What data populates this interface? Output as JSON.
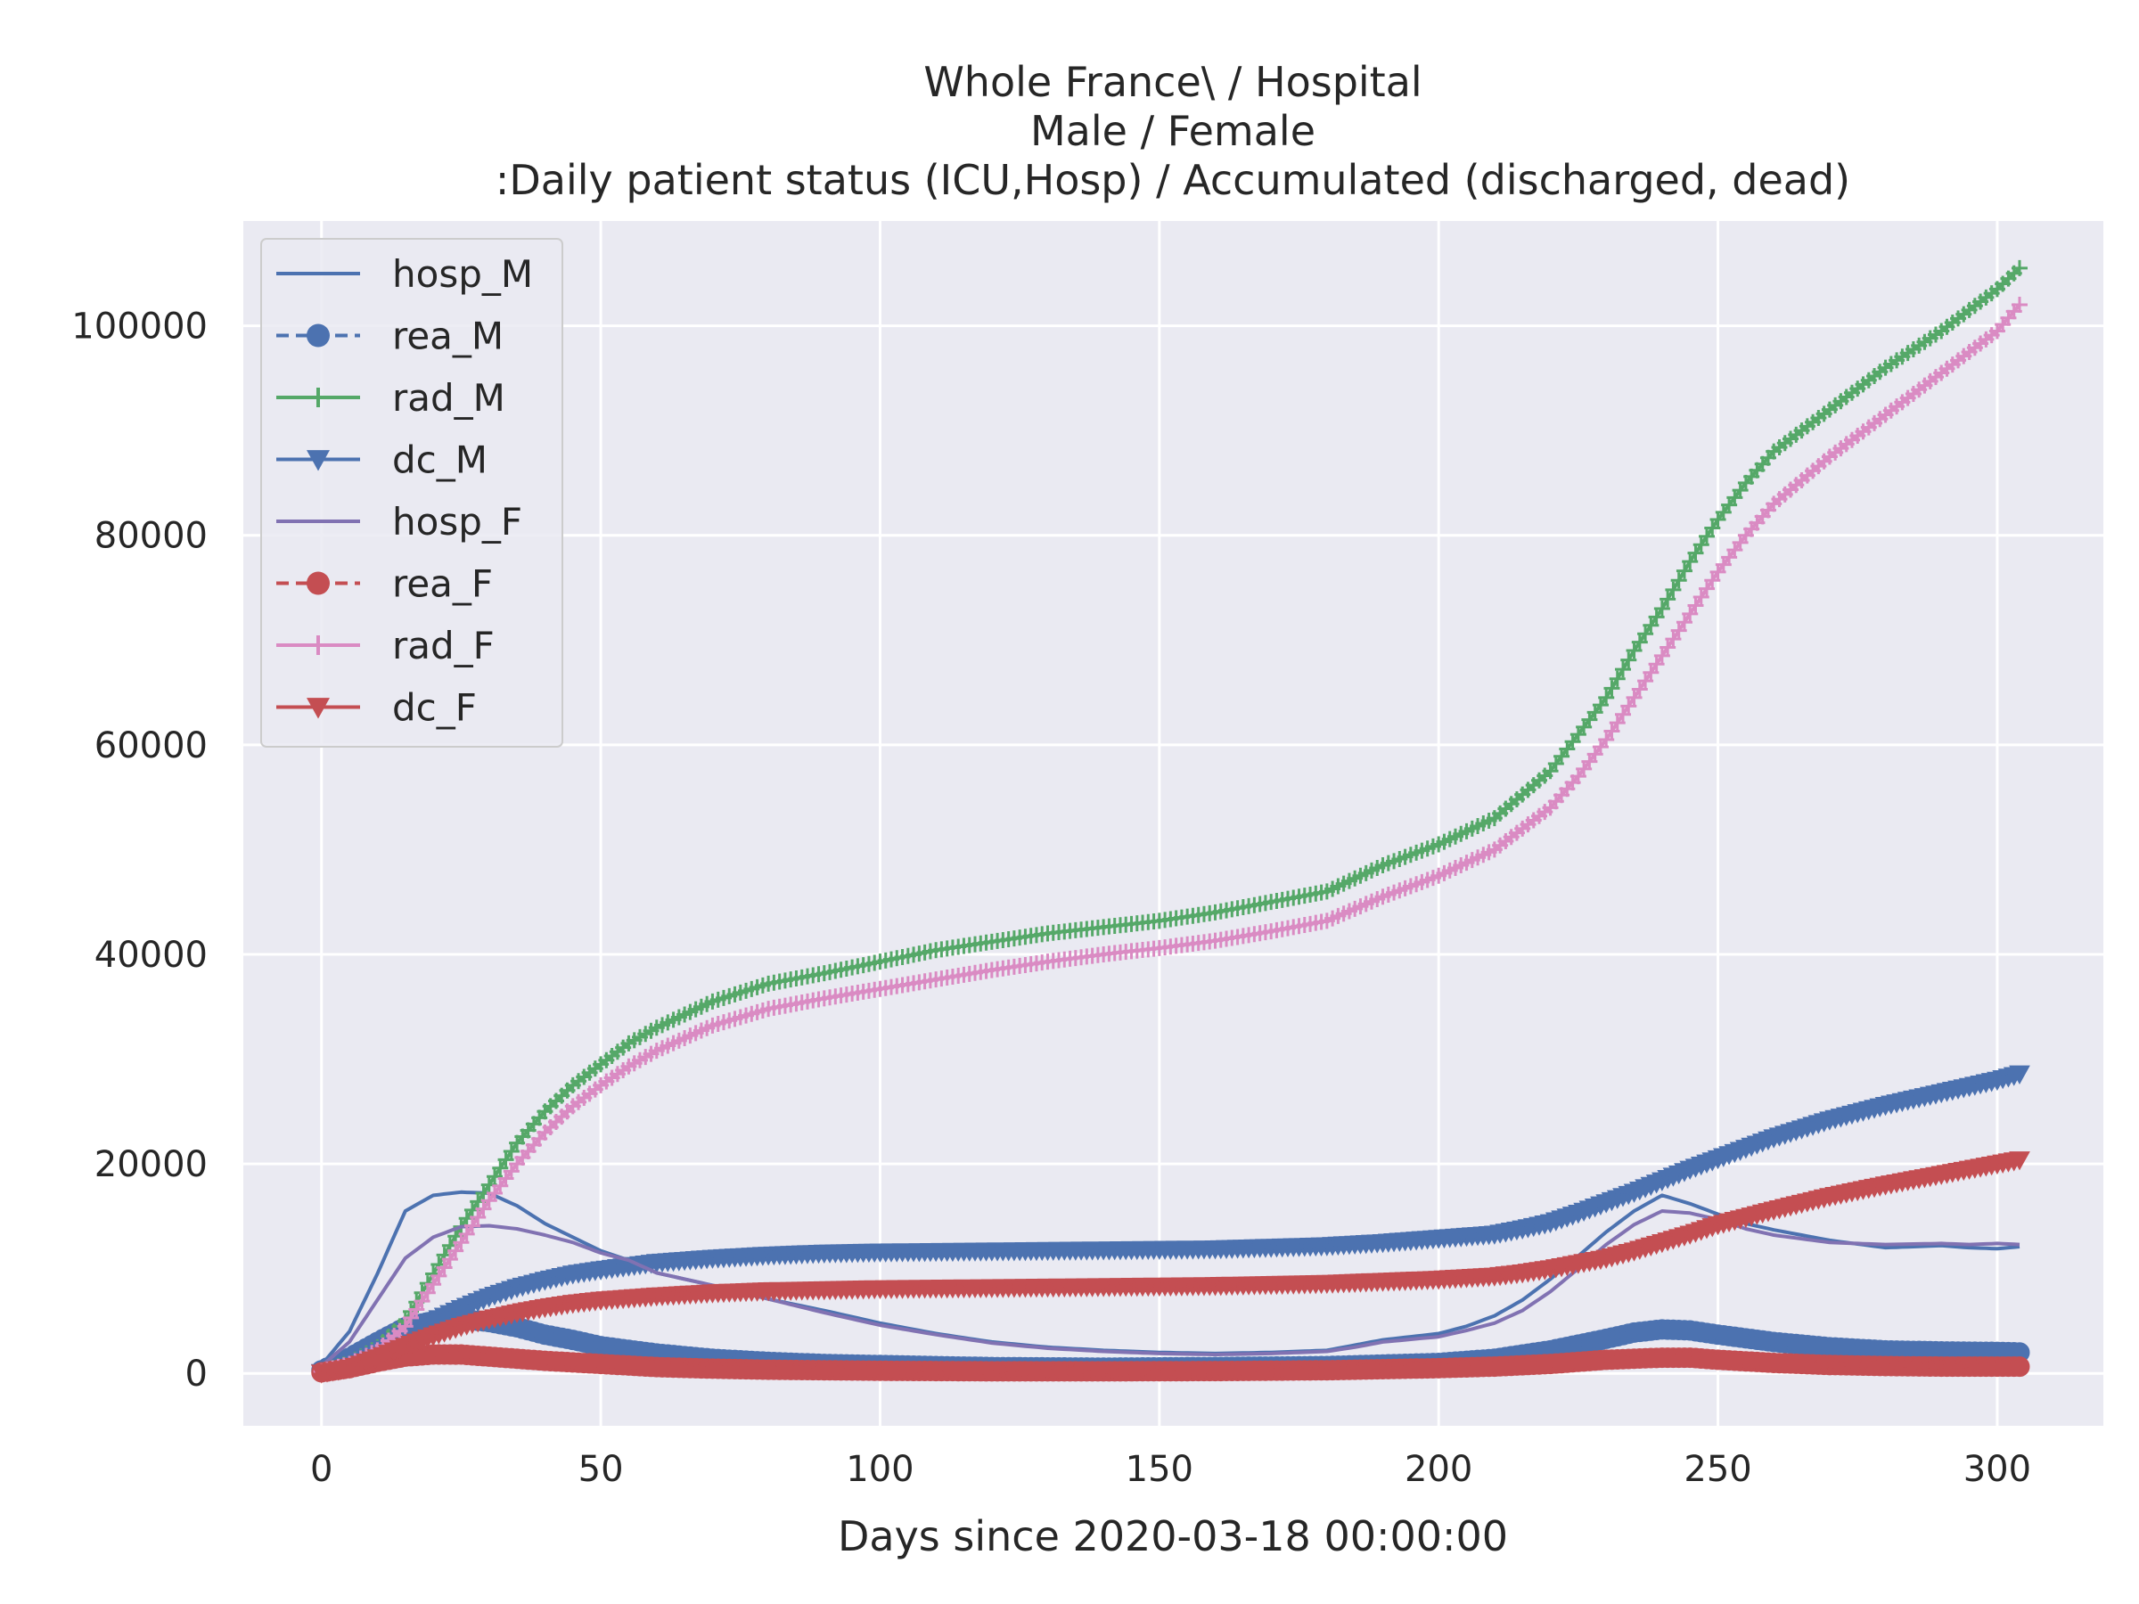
{
  "chart_data": {
    "type": "line",
    "title_lines": [
      "Whole France\\ / Hospital",
      "Male / Female",
      ":Daily patient status (ICU,Hosp) / Accumulated (discharged, dead)"
    ],
    "xlabel": "Days since 2020-03-18 00:00:00",
    "ylabel": "",
    "xlim": [
      -14,
      319
    ],
    "ylim": [
      -5000,
      110000
    ],
    "xticks": [
      0,
      50,
      100,
      150,
      200,
      250,
      300
    ],
    "yticks": [
      0,
      20000,
      40000,
      60000,
      80000,
      100000
    ],
    "grid": true,
    "background": "#eaeaf2",
    "legend_position": "upper-left",
    "series": [
      {
        "name": "hosp_M",
        "color": "#4c72b0",
        "line": "solid",
        "marker": "none",
        "x": [
          0,
          5,
          10,
          15,
          20,
          25,
          30,
          35,
          40,
          45,
          50,
          55,
          60,
          70,
          80,
          90,
          100,
          110,
          120,
          130,
          140,
          150,
          160,
          170,
          180,
          185,
          190,
          200,
          205,
          210,
          215,
          220,
          225,
          230,
          235,
          240,
          245,
          250,
          255,
          260,
          270,
          280,
          290,
          295,
          300,
          304
        ],
        "y": [
          800,
          4000,
          9500,
          15500,
          17000,
          17300,
          17200,
          16000,
          14300,
          13000,
          11700,
          10800,
          9600,
          8400,
          7100,
          6000,
          4800,
          3800,
          3000,
          2500,
          2200,
          2000,
          1900,
          2000,
          2200,
          2700,
          3200,
          3800,
          4500,
          5500,
          7000,
          9000,
          11200,
          13500,
          15500,
          17000,
          16200,
          15200,
          14300,
          13700,
          12700,
          12000,
          12200,
          12000,
          11900,
          12100
        ]
      },
      {
        "name": "rea_M",
        "color": "#4c72b0",
        "line": "dashed",
        "marker": "circle",
        "x": [
          0,
          5,
          10,
          15,
          20,
          25,
          30,
          35,
          40,
          45,
          50,
          60,
          70,
          80,
          90,
          100,
          120,
          140,
          160,
          180,
          200,
          210,
          220,
          230,
          235,
          240,
          245,
          250,
          260,
          270,
          280,
          290,
          300,
          304
        ],
        "y": [
          300,
          1500,
          3000,
          4400,
          5000,
          5200,
          4900,
          4400,
          3700,
          3200,
          2600,
          1900,
          1400,
          1100,
          900,
          800,
          600,
          550,
          600,
          700,
          1000,
          1400,
          2200,
          3300,
          3900,
          4200,
          4100,
          3700,
          3000,
          2500,
          2200,
          2100,
          2050,
          2000
        ]
      },
      {
        "name": "rad_M",
        "color": "#55a868",
        "line": "solid",
        "marker": "plus",
        "x": [
          0,
          5,
          10,
          15,
          20,
          25,
          30,
          35,
          40,
          45,
          50,
          55,
          60,
          70,
          80,
          90,
          100,
          110,
          120,
          130,
          140,
          150,
          160,
          170,
          180,
          190,
          200,
          210,
          220,
          225,
          230,
          235,
          240,
          245,
          250,
          255,
          260,
          270,
          280,
          290,
          300,
          304
        ],
        "y": [
          200,
          1000,
          2500,
          5000,
          9500,
          14000,
          18000,
          22000,
          25000,
          27500,
          29500,
          31500,
          33000,
          35500,
          37200,
          38200,
          39300,
          40400,
          41200,
          42000,
          42600,
          43200,
          44000,
          45000,
          46000,
          48500,
          50500,
          53000,
          57500,
          61000,
          64500,
          69000,
          73000,
          77500,
          81500,
          85000,
          88000,
          92000,
          96000,
          99500,
          103500,
          105500
        ]
      },
      {
        "name": "dc_M",
        "color": "#4c72b0",
        "line": "solid",
        "marker": "triangle-down",
        "x": [
          0,
          5,
          10,
          15,
          20,
          25,
          30,
          35,
          40,
          45,
          50,
          60,
          70,
          80,
          90,
          100,
          120,
          140,
          160,
          180,
          190,
          200,
          210,
          215,
          220,
          225,
          230,
          235,
          240,
          245,
          250,
          260,
          270,
          280,
          290,
          300,
          304
        ],
        "y": [
          100,
          700,
          2000,
          3600,
          5000,
          6200,
          7300,
          8200,
          8900,
          9500,
          9900,
          10600,
          11000,
          11300,
          11500,
          11600,
          11700,
          11800,
          11900,
          12200,
          12500,
          12900,
          13300,
          13800,
          14400,
          15300,
          16300,
          17300,
          18400,
          19500,
          20500,
          22500,
          24200,
          25600,
          26800,
          28000,
          28600
        ]
      },
      {
        "name": "hosp_F",
        "color": "#8172b2",
        "line": "solid",
        "marker": "none",
        "x": [
          0,
          5,
          10,
          15,
          20,
          25,
          30,
          35,
          40,
          45,
          50,
          55,
          60,
          70,
          80,
          90,
          100,
          110,
          120,
          130,
          140,
          150,
          160,
          170,
          180,
          185,
          190,
          200,
          205,
          210,
          215,
          220,
          225,
          230,
          235,
          240,
          245,
          250,
          255,
          260,
          270,
          280,
          290,
          295,
          300,
          304
        ],
        "y": [
          700,
          3000,
          7000,
          11000,
          13000,
          14000,
          14100,
          13800,
          13200,
          12500,
          11500,
          10800,
          9600,
          8400,
          7100,
          5800,
          4600,
          3700,
          2900,
          2400,
          2100,
          1900,
          1800,
          1900,
          2100,
          2500,
          3000,
          3500,
          4100,
          4800,
          6000,
          7800,
          10000,
          12300,
          14200,
          15500,
          15300,
          14700,
          13800,
          13200,
          12500,
          12300,
          12400,
          12300,
          12400,
          12300
        ]
      },
      {
        "name": "rea_F",
        "color": "#c44e52",
        "line": "dashed",
        "marker": "circle",
        "x": [
          0,
          5,
          10,
          15,
          20,
          25,
          30,
          35,
          40,
          50,
          60,
          70,
          80,
          90,
          100,
          120,
          140,
          160,
          180,
          200,
          210,
          220,
          230,
          240,
          245,
          250,
          260,
          270,
          280,
          290,
          300,
          304
        ],
        "y": [
          100,
          500,
          1100,
          1600,
          1800,
          1800,
          1600,
          1400,
          1200,
          900,
          600,
          450,
          350,
          300,
          250,
          200,
          200,
          220,
          300,
          500,
          650,
          900,
          1300,
          1500,
          1500,
          1300,
          1000,
          800,
          700,
          650,
          650,
          650
        ]
      },
      {
        "name": "rad_F",
        "color": "#da8bc3",
        "line": "solid",
        "marker": "plus",
        "x": [
          0,
          5,
          10,
          15,
          20,
          25,
          30,
          35,
          40,
          45,
          50,
          55,
          60,
          70,
          80,
          90,
          100,
          110,
          120,
          130,
          140,
          150,
          160,
          170,
          180,
          190,
          200,
          210,
          220,
          225,
          230,
          235,
          240,
          245,
          250,
          255,
          260,
          270,
          280,
          290,
          300,
          304
        ],
        "y": [
          200,
          900,
          2200,
          4500,
          8500,
          12500,
          16500,
          20000,
          23000,
          25500,
          27500,
          29300,
          30800,
          33200,
          34800,
          35800,
          36700,
          37600,
          38500,
          39300,
          40000,
          40600,
          41300,
          42200,
          43200,
          45500,
          47500,
          50000,
          54000,
          57000,
          60500,
          64500,
          68500,
          72500,
          76500,
          80000,
          83000,
          87500,
          91500,
          95500,
          99500,
          102000
        ]
      },
      {
        "name": "dc_F",
        "color": "#c44e52",
        "line": "solid",
        "marker": "triangle-down",
        "x": [
          0,
          5,
          10,
          15,
          20,
          25,
          30,
          35,
          40,
          45,
          50,
          60,
          70,
          80,
          90,
          100,
          120,
          140,
          160,
          180,
          200,
          210,
          215,
          220,
          225,
          230,
          235,
          240,
          245,
          250,
          260,
          270,
          280,
          290,
          300,
          304
        ],
        "y": [
          50,
          500,
          1500,
          2600,
          3600,
          4500,
          5200,
          5800,
          6300,
          6700,
          7000,
          7400,
          7700,
          7900,
          8000,
          8100,
          8200,
          8300,
          8400,
          8600,
          9000,
          9300,
          9600,
          10000,
          10500,
          11000,
          11700,
          12500,
          13300,
          14200,
          15600,
          16900,
          18000,
          19000,
          20000,
          20400
        ]
      }
    ]
  }
}
